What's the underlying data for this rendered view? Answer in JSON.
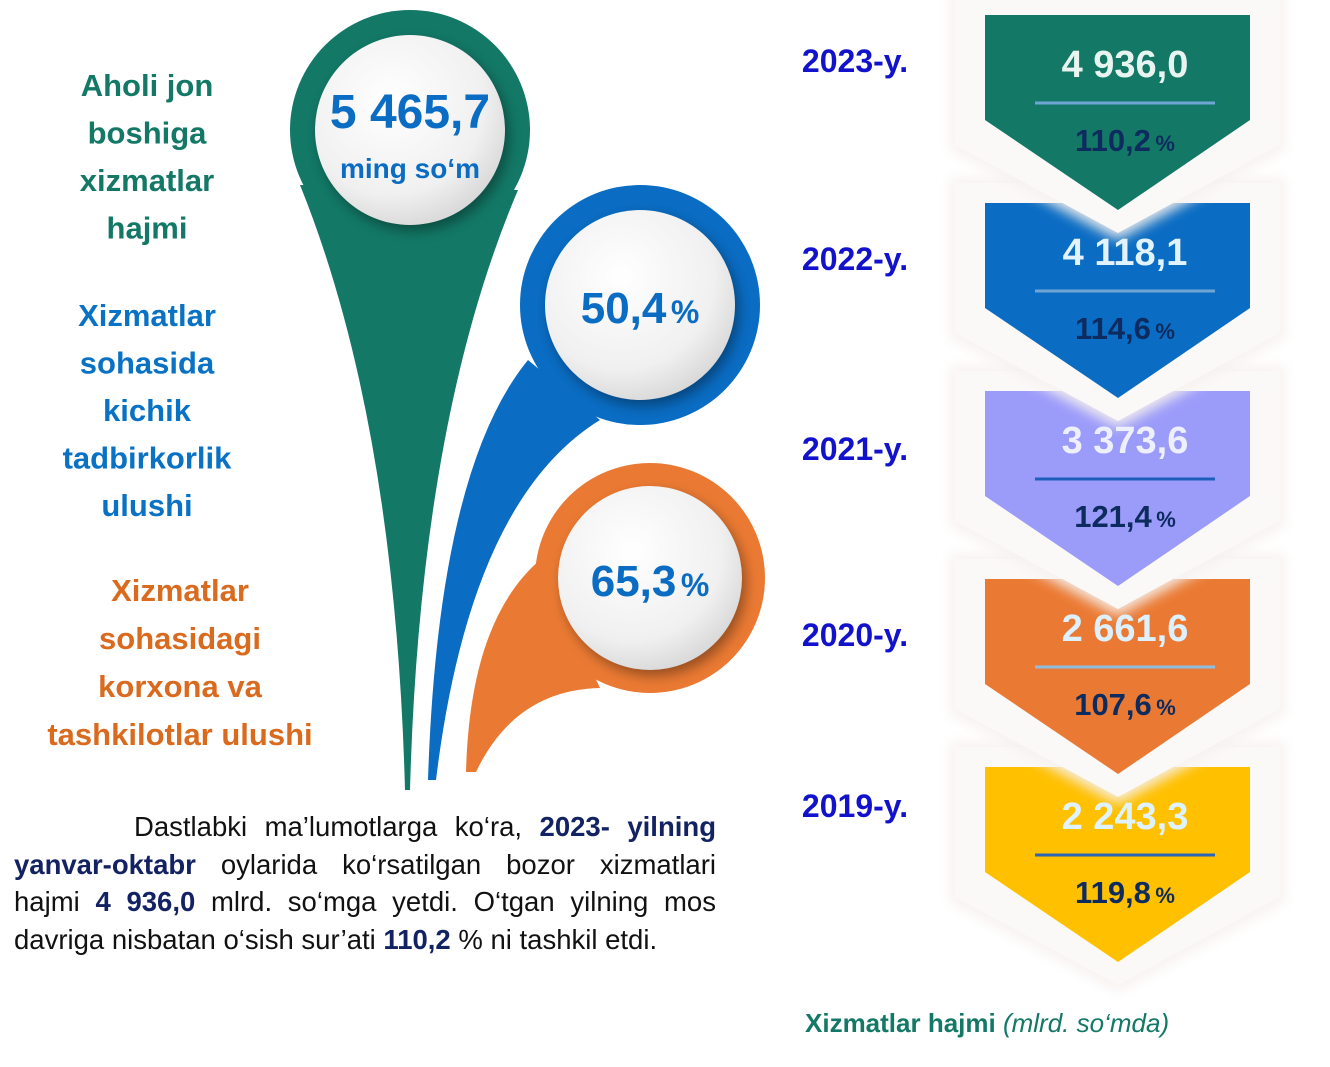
{
  "indicators": [
    {
      "label": [
        "Aholi jon",
        "boshiga",
        "xizmatlar",
        "hajmi"
      ],
      "value": "5 465,7",
      "unit": "ming so‘m"
    },
    {
      "label": [
        "Xizmatlar",
        "sohasida",
        "kichik",
        "tadbirkorlik",
        "ulushi"
      ],
      "value": "50,4",
      "unit": "%"
    },
    {
      "label": [
        "Xizmatlar",
        "sohasidagi",
        "korxona va",
        "tashkilotlar ulushi"
      ],
      "value": "65,3",
      "unit": "%"
    }
  ],
  "paragraph": [
    {
      "text": "Dastlabki ma’lumotlarga ko‘ra, ",
      "bold": false
    },
    {
      "text": "2023- yilning yanvar-oktabr",
      "bold": true
    },
    {
      "text": " oylarida ko‘rsatilgan bozor xizmatlari hajmi ",
      "bold": false
    },
    {
      "text": "4 936,0",
      "bold": true
    },
    {
      "text": " mlrd. so‘mga yetdi. O‘tgan yilning mos davriga nisbatan o‘sish sur’ati ",
      "bold": false
    },
    {
      "text": "110,2",
      "bold": true
    },
    {
      "text": " % ni tashkil etdi.",
      "bold": false
    }
  ],
  "years": [
    {
      "year": "2023-y.",
      "volume": "4 936,0",
      "growth": "110,2",
      "unit": "%"
    },
    {
      "year": "2022-y.",
      "volume": "4 118,1",
      "growth": "114,6",
      "unit": "%"
    },
    {
      "year": "2021-y.",
      "volume": "3 373,6",
      "growth": "121,4",
      "unit": "%"
    },
    {
      "year": "2020-y.",
      "volume": "2 661,6",
      "growth": "107,6",
      "unit": "%"
    },
    {
      "year": "2019-y.",
      "volume": "2 243,3",
      "growth": "119,8",
      "unit": "%"
    }
  ],
  "caption": {
    "bold": "Xizmatlar hajmi",
    "italic": "(mlrd. so‘mda)"
  }
}
